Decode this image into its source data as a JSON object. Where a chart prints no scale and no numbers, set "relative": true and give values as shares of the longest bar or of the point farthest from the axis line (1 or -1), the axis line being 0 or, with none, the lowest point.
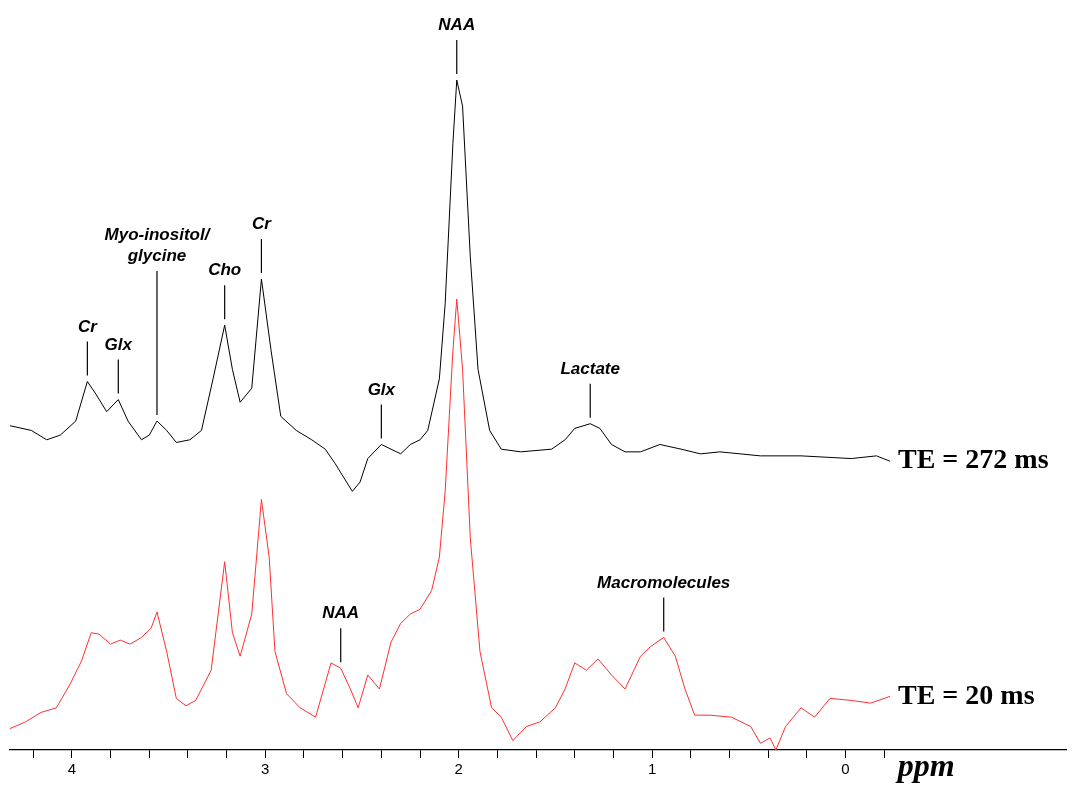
{
  "chart_data": {
    "type": "line",
    "relative": true,
    "xlabel": "ppm",
    "xlim": [
      4.32,
      -1.14
    ],
    "xticks": [
      {
        "value": 4.2,
        "label": null
      },
      4,
      {
        "value": 3.8,
        "label": null
      },
      {
        "value": 3.6,
        "label": null
      },
      {
        "value": 3.4,
        "label": null
      },
      {
        "value": 3.2,
        "label": null
      },
      3,
      {
        "value": 2.8,
        "label": null
      },
      {
        "value": 2.6,
        "label": null
      },
      {
        "value": 2.4,
        "label": null
      },
      {
        "value": 2.2,
        "label": null
      },
      2,
      {
        "value": 1.8,
        "label": null
      },
      {
        "value": 1.6,
        "label": null
      },
      {
        "value": 1.4,
        "label": null
      },
      {
        "value": 1.2,
        "label": null
      },
      1,
      {
        "value": 0.8,
        "label": null
      },
      {
        "value": 0.6,
        "label": null
      },
      {
        "value": 0.4,
        "label": null
      },
      {
        "value": 0.2,
        "label": null
      },
      0,
      {
        "value": -0.2,
        "label": null
      }
    ],
    "tick_labels": "x",
    "marker": "none",
    "line_style": "solid",
    "series": [
      {
        "name": "TE = 272 ms",
        "color": "#000000",
        "x": [
          4.32,
          4.21,
          4.13,
          4.06,
          3.98,
          3.92,
          3.88,
          3.82,
          3.76,
          3.71,
          3.64,
          3.6,
          3.56,
          3.51,
          3.46,
          3.39,
          3.33,
          3.27,
          3.21,
          3.17,
          3.13,
          3.07,
          3.02,
          2.97,
          2.92,
          2.84,
          2.76,
          2.69,
          2.64,
          2.58,
          2.55,
          2.51,
          2.47,
          2.4,
          2.35,
          2.3,
          2.25,
          2.2,
          2.16,
          2.1,
          2.07,
          2.03,
          2.01,
          1.98,
          1.94,
          1.9,
          1.84,
          1.78,
          1.68,
          1.52,
          1.45,
          1.4,
          1.32,
          1.27,
          1.21,
          1.14,
          1.06,
          0.96,
          0.85,
          0.75,
          0.65,
          0.44,
          0.23,
          -0.03,
          -0.16,
          -0.23
        ],
        "values": [
          0.484,
          0.477,
          0.463,
          0.47,
          0.491,
          0.55,
          0.533,
          0.505,
          0.523,
          0.491,
          0.463,
          0.47,
          0.491,
          0.477,
          0.459,
          0.463,
          0.477,
          0.554,
          0.634,
          0.568,
          0.519,
          0.54,
          0.703,
          0.596,
          0.498,
          0.477,
          0.463,
          0.449,
          0.428,
          0.4,
          0.386,
          0.4,
          0.435,
          0.456,
          0.449,
          0.442,
          0.456,
          0.463,
          0.477,
          0.554,
          0.666,
          0.905,
          1,
          0.961,
          0.736,
          0.568,
          0.477,
          0.449,
          0.445,
          0.449,
          0.463,
          0.48,
          0.487,
          0.48,
          0.456,
          0.445,
          0.445,
          0.456,
          0.449,
          0.442,
          0.445,
          0.439,
          0.439,
          0.435,
          0.439,
          0.431
        ]
      },
      {
        "name": "TE = 20 ms",
        "color": "#ff3030",
        "x": [
          4.32,
          4.24,
          4.16,
          4.08,
          4.01,
          3.95,
          3.9,
          3.86,
          3.8,
          3.75,
          3.7,
          3.64,
          3.59,
          3.56,
          3.51,
          3.46,
          3.41,
          3.36,
          3.28,
          3.21,
          3.17,
          3.13,
          3.07,
          3.02,
          2.98,
          2.95,
          2.89,
          2.82,
          2.74,
          2.66,
          2.61,
          2.56,
          2.52,
          2.47,
          2.41,
          2.35,
          2.3,
          2.25,
          2.2,
          2.14,
          2.1,
          2.07,
          2.03,
          2.01,
          1.98,
          1.94,
          1.89,
          1.83,
          1.78,
          1.72,
          1.65,
          1.58,
          1.5,
          1.45,
          1.4,
          1.34,
          1.28,
          1.21,
          1.14,
          1.06,
          1.01,
          0.94,
          0.88,
          0.83,
          0.78,
          0.7,
          0.59,
          0.49,
          0.44,
          0.39,
          0.36,
          0.31,
          0.23,
          0.16,
          0.08,
          -0.03,
          -0.13,
          -0.23
        ],
        "values": [
          0.032,
          0.042,
          0.056,
          0.063,
          0.098,
          0.133,
          0.175,
          0.173,
          0.158,
          0.164,
          0.158,
          0.168,
          0.182,
          0.206,
          0.147,
          0.077,
          0.066,
          0.074,
          0.119,
          0.281,
          0.175,
          0.14,
          0.203,
          0.374,
          0.288,
          0.147,
          0.084,
          0.063,
          0.049,
          0.13,
          0.122,
          0.091,
          0.063,
          0.112,
          0.091,
          0.161,
          0.189,
          0.203,
          0.21,
          0.238,
          0.288,
          0.386,
          0.596,
          0.673,
          0.568,
          0.316,
          0.147,
          0.063,
          0.049,
          0.014,
          0.035,
          0.042,
          0.063,
          0.091,
          0.13,
          0.119,
          0.136,
          0.112,
          0.091,
          0.14,
          0.154,
          0.168,
          0.14,
          0.091,
          0.052,
          0.052,
          0.049,
          0.035,
          0.01,
          0.018,
          0,
          0.035,
          0.063,
          0.049,
          0.077,
          0.074,
          0.07,
          0.08
        ]
      }
    ],
    "annotations": [
      {
        "text": "Cr",
        "x": 3.92,
        "y": 0.55
      },
      {
        "text": "Glx",
        "x": 3.76,
        "y": 0.523
      },
      {
        "text": "Myo-inositol/\nglycine",
        "x": 3.56,
        "y": 0.491
      },
      {
        "text": "Cho",
        "x": 3.21,
        "y": 0.634
      },
      {
        "text": "Cr",
        "x": 3.02,
        "y": 0.703
      },
      {
        "text": "NAA",
        "x": 2.01,
        "y": 1
      },
      {
        "text": "Glx",
        "x": 2.4,
        "y": 0.456
      },
      {
        "text": "Lactate",
        "x": 1.32,
        "y": 0.487
      },
      {
        "text": "NAA",
        "x": 2.61,
        "y": 0.122
      },
      {
        "text": "Macromolecules",
        "x": 0.94,
        "y": 0.168
      }
    ]
  }
}
